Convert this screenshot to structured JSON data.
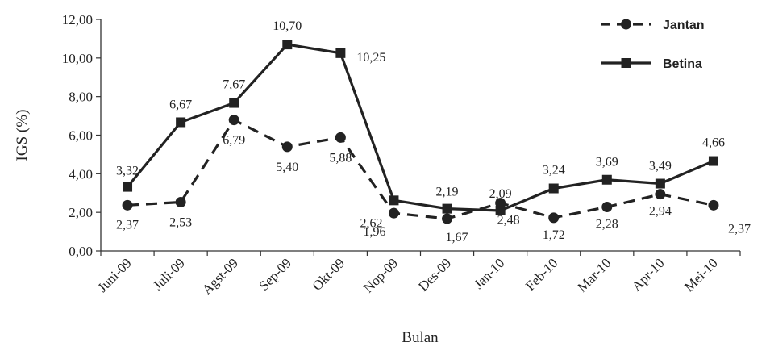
{
  "chart_data": {
    "type": "line",
    "xlabel": "Bulan",
    "ylabel": "IGS (%)",
    "ylim": [
      0,
      12
    ],
    "yticks": [
      "0,00",
      "2,00",
      "4,00",
      "6,00",
      "8,00",
      "10,00",
      "12,00"
    ],
    "categories": [
      "Juni-09",
      "Juli-09",
      "Agst-09",
      "Sep-09",
      "Okt-09",
      "Nop-09",
      "Des-09",
      "Jan-10",
      "Feb-10",
      "Mar-10",
      "Apr-10",
      "Mei-10"
    ],
    "grid": false,
    "legend_position": "top-right",
    "series": [
      {
        "name": "Jantan",
        "style": "dashed",
        "marker": "circle",
        "color": "#222222",
        "values": [
          2.37,
          2.53,
          6.79,
          5.4,
          5.88,
          1.96,
          1.67,
          2.48,
          1.72,
          2.28,
          2.94,
          2.37
        ],
        "labels": [
          "2,37",
          "2,53",
          "6,79",
          "5,40",
          "5,88",
          "1,96",
          "1,67",
          "2,48",
          "1,72",
          "2,28",
          "2,94",
          "2,37"
        ]
      },
      {
        "name": "Betina",
        "style": "solid",
        "marker": "square",
        "color": "#222222",
        "values": [
          3.32,
          6.67,
          7.67,
          10.7,
          10.25,
          2.62,
          2.19,
          2.09,
          3.24,
          3.69,
          3.49,
          4.66
        ],
        "labels": [
          "3,32",
          "6,67",
          "7,67",
          "10,70",
          "10,25",
          "2,62",
          "2,19",
          "2,09",
          "3,24",
          "3,69",
          "3,49",
          "4,66"
        ]
      }
    ]
  }
}
